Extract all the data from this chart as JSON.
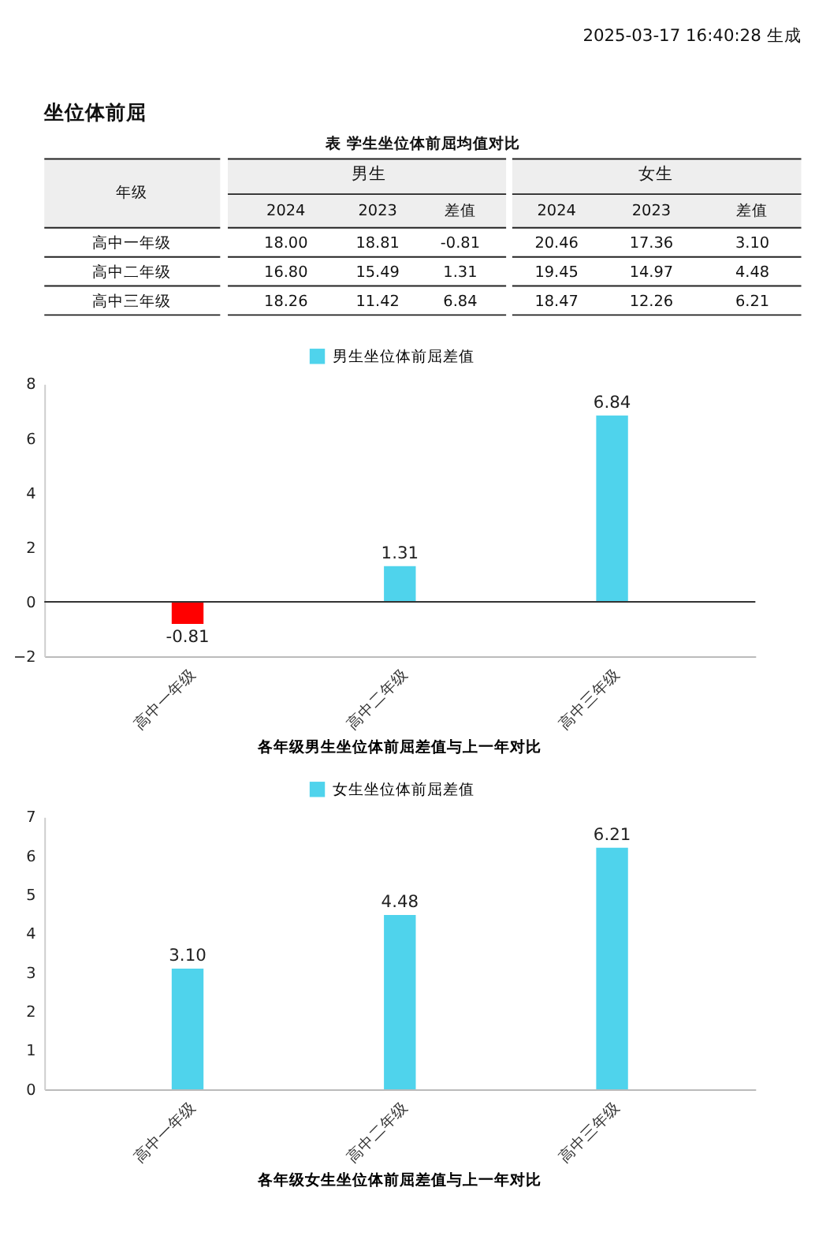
{
  "chart_data": [
    {
      "type": "other",
      "title": "表 学生坐位体前屈均值对比",
      "ylabel": "年级",
      "annotations": [
        "2025-03-17 16:40:28 生成",
        "坐位体前屈",
        "男生",
        "女生"
      ],
      "categories": [
        "高中一年级",
        "高中二年级",
        "高中三年级"
      ],
      "series": [
        {
          "name": "2024",
          "values": [
            18.0,
            16.8,
            18.26
          ],
          "value_labels": [
            "18.00",
            "16.80",
            "18.26"
          ]
        },
        {
          "name": "2023",
          "values": [
            18.81,
            15.49,
            11.42
          ]
        },
        {
          "name": "差值",
          "values": [
            -0.81,
            1.31,
            6.84
          ]
        },
        {
          "name": "2024",
          "values": [
            20.46,
            19.45,
            18.47
          ]
        },
        {
          "name": "2023",
          "values": [
            17.36,
            14.97,
            12.26
          ]
        },
        {
          "name": "差值",
          "values": [
            3.1,
            4.48,
            6.21
          ],
          "value_labels": [
            "3.10",
            "4.48",
            "6.21"
          ]
        }
      ],
      "data_labels": true
    },
    {
      "type": "bar",
      "title": "各年级男生坐位体前屈差值与上一年对比",
      "categories": [
        "高中一年级",
        "高中二年级",
        "高中三年级"
      ],
      "series": [
        {
          "name": "男生坐位体前屈差值",
          "color": "#4fd3ec",
          "colors": [
            "#ff0000",
            "#4fd3ec",
            "#4fd3ec"
          ],
          "values": [
            -0.81,
            1.31,
            6.84
          ]
        }
      ],
      "ylim": [
        -2,
        8
      ],
      "yticks": [
        -2,
        0,
        2,
        4,
        6,
        8
      ],
      "data_labels": true,
      "legend": "top",
      "grid": false,
      "ref_lines": [
        {
          "axis": "y",
          "value": 0,
          "color": "#333333"
        }
      ]
    },
    {
      "type": "bar",
      "title": "各年级女生坐位体前屈差值与上一年对比",
      "categories": [
        "高中一年级",
        "高中二年级",
        "高中三年级"
      ],
      "series": [
        {
          "name": "女生坐位体前屈差值",
          "color": "#4fd3ec",
          "values": [
            3.1,
            4.48,
            6.21
          ],
          "value_labels": [
            "3.10",
            "4.48",
            "6.21"
          ]
        }
      ],
      "ylim": [
        0,
        7
      ],
      "yticks": [
        0,
        1,
        2,
        3,
        4,
        5,
        6,
        7
      ],
      "legend": "top",
      "grid": false
    }
  ]
}
